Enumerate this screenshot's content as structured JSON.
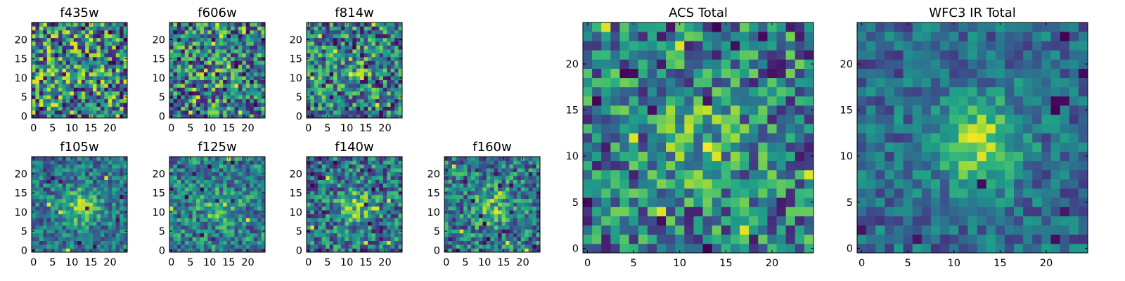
{
  "chart_data": [
    {
      "type": "heatmap",
      "title": "f435w",
      "x_ticks": [
        0,
        5,
        10,
        15,
        20
      ],
      "y_ticks": [
        0,
        5,
        10,
        15,
        20
      ],
      "grid_size": 25,
      "xlim": [
        0,
        25
      ],
      "ylim": [
        0,
        25
      ],
      "colormap": "viridis",
      "seed": 11,
      "noise": 1.0,
      "blob": 0.0,
      "spikes": 0.1
    },
    {
      "type": "heatmap",
      "title": "f606w",
      "x_ticks": [
        0,
        5,
        10,
        15,
        20
      ],
      "y_ticks": [
        0,
        5,
        10,
        15,
        20
      ],
      "grid_size": 25,
      "xlim": [
        0,
        25
      ],
      "ylim": [
        0,
        25
      ],
      "colormap": "viridis",
      "seed": 23,
      "noise": 0.9,
      "blob": 0.25,
      "spikes": 0.06
    },
    {
      "type": "heatmap",
      "title": "f814w",
      "x_ticks": [
        0,
        5,
        10,
        15,
        20
      ],
      "y_ticks": [
        0,
        5,
        10,
        15,
        20
      ],
      "grid_size": 25,
      "xlim": [
        0,
        25
      ],
      "ylim": [
        0,
        25
      ],
      "colormap": "viridis",
      "seed": 37,
      "noise": 0.85,
      "blob": 0.35,
      "spikes": 0.07
    },
    {
      "type": "heatmap",
      "title": "f105w",
      "x_ticks": [
        0,
        5,
        10,
        15,
        20
      ],
      "y_ticks": [
        0,
        5,
        10,
        15,
        20
      ],
      "grid_size": 25,
      "xlim": [
        0,
        25
      ],
      "ylim": [
        0,
        25
      ],
      "colormap": "viridis",
      "seed": 41,
      "noise": 0.55,
      "blob": 0.7,
      "spikes": 0.02
    },
    {
      "type": "heatmap",
      "title": "f125w",
      "x_ticks": [
        0,
        5,
        10,
        15,
        20
      ],
      "y_ticks": [
        0,
        5,
        10,
        15,
        20
      ],
      "grid_size": 25,
      "xlim": [
        0,
        25
      ],
      "ylim": [
        0,
        25
      ],
      "colormap": "viridis",
      "seed": 53,
      "noise": 0.65,
      "blob": 0.45,
      "spikes": 0.03
    },
    {
      "type": "heatmap",
      "title": "f140w",
      "x_ticks": [
        0,
        5,
        10,
        15,
        20
      ],
      "y_ticks": [
        0,
        5,
        10,
        15,
        20
      ],
      "grid_size": 25,
      "xlim": [
        0,
        25
      ],
      "ylim": [
        0,
        25
      ],
      "colormap": "viridis",
      "seed": 67,
      "noise": 0.7,
      "blob": 0.55,
      "spikes": 0.05
    },
    {
      "type": "heatmap",
      "title": "f160w",
      "x_ticks": [
        0,
        5,
        10,
        15,
        20
      ],
      "y_ticks": [
        0,
        5,
        10,
        15,
        20
      ],
      "grid_size": 25,
      "xlim": [
        0,
        25
      ],
      "ylim": [
        0,
        25
      ],
      "colormap": "viridis",
      "seed": 79,
      "noise": 0.7,
      "blob": 0.5,
      "spikes": 0.05
    },
    {
      "type": "heatmap",
      "title": "ACS Total",
      "x_ticks": [
        0,
        5,
        10,
        15,
        20
      ],
      "y_ticks": [
        0,
        5,
        10,
        15,
        20
      ],
      "grid_size": 25,
      "xlim": [
        0,
        25
      ],
      "ylim": [
        0,
        25
      ],
      "colormap": "viridis",
      "seed": 97,
      "noise": 0.8,
      "blob": 0.45,
      "spikes": 0.04
    },
    {
      "type": "heatmap",
      "title": "WFC3 IR Total",
      "x_ticks": [
        0,
        5,
        10,
        15,
        20
      ],
      "y_ticks": [
        0,
        5,
        10,
        15,
        20
      ],
      "grid_size": 25,
      "xlim": [
        0,
        25
      ],
      "ylim": [
        0,
        25
      ],
      "colormap": "viridis",
      "seed": 113,
      "noise": 0.45,
      "blob": 0.9,
      "spikes": 0.025
    }
  ]
}
